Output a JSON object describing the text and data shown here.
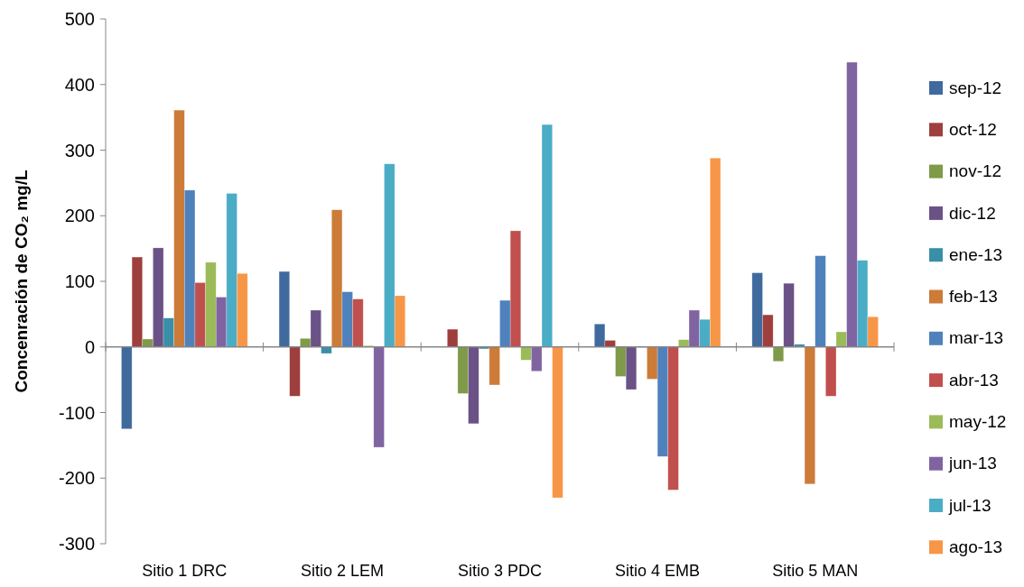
{
  "chart_data": {
    "type": "bar",
    "ylabel": "Concenración de CO₂ mg/L",
    "categories": [
      "Sitio 1 DRC",
      "Sitio 2 LEM",
      "Sitio 3 PDC",
      "Sitio 4 EMB",
      "Sitio 5 MAN"
    ],
    "ylim": [
      -300,
      500
    ],
    "yticks": [
      -300,
      -200,
      -100,
      0,
      100,
      200,
      300,
      400,
      500
    ],
    "legend": "right",
    "series": [
      {
        "name": "sep-12",
        "color": "#3f6a9e",
        "values": [
          -125,
          115,
          1,
          35,
          113
        ]
      },
      {
        "name": "oct-12",
        "color": "#9e3f3d",
        "values": [
          137,
          -75,
          27,
          10,
          49
        ]
      },
      {
        "name": "nov-12",
        "color": "#7f9a48",
        "values": [
          12,
          13,
          -71,
          -45,
          -22
        ]
      },
      {
        "name": "dic-12",
        "color": "#6a5286",
        "values": [
          151,
          56,
          -117,
          -65,
          97
        ]
      },
      {
        "name": "ene-13",
        "color": "#3a8fa8",
        "values": [
          44,
          -10,
          -3,
          0,
          4
        ]
      },
      {
        "name": "feb-13",
        "color": "#cc7b38",
        "values": [
          361,
          209,
          -58,
          -49,
          -209
        ]
      },
      {
        "name": "mar-13",
        "color": "#4f81bd",
        "values": [
          239,
          84,
          71,
          -167,
          139
        ]
      },
      {
        "name": "abr-13",
        "color": "#c0504d",
        "values": [
          98,
          73,
          177,
          -218,
          -75
        ]
      },
      {
        "name": "may-12",
        "color": "#9bbb59",
        "values": [
          129,
          2,
          -20,
          11,
          23
        ]
      },
      {
        "name": "jun-13",
        "color": "#8064a2",
        "values": [
          76,
          -153,
          -37,
          56,
          434
        ]
      },
      {
        "name": "jul-13",
        "color": "#4bacc6",
        "values": [
          234,
          279,
          339,
          42,
          132
        ]
      },
      {
        "name": "ago-13",
        "color": "#f79646",
        "values": [
          112,
          78,
          -230,
          288,
          46
        ]
      }
    ]
  }
}
